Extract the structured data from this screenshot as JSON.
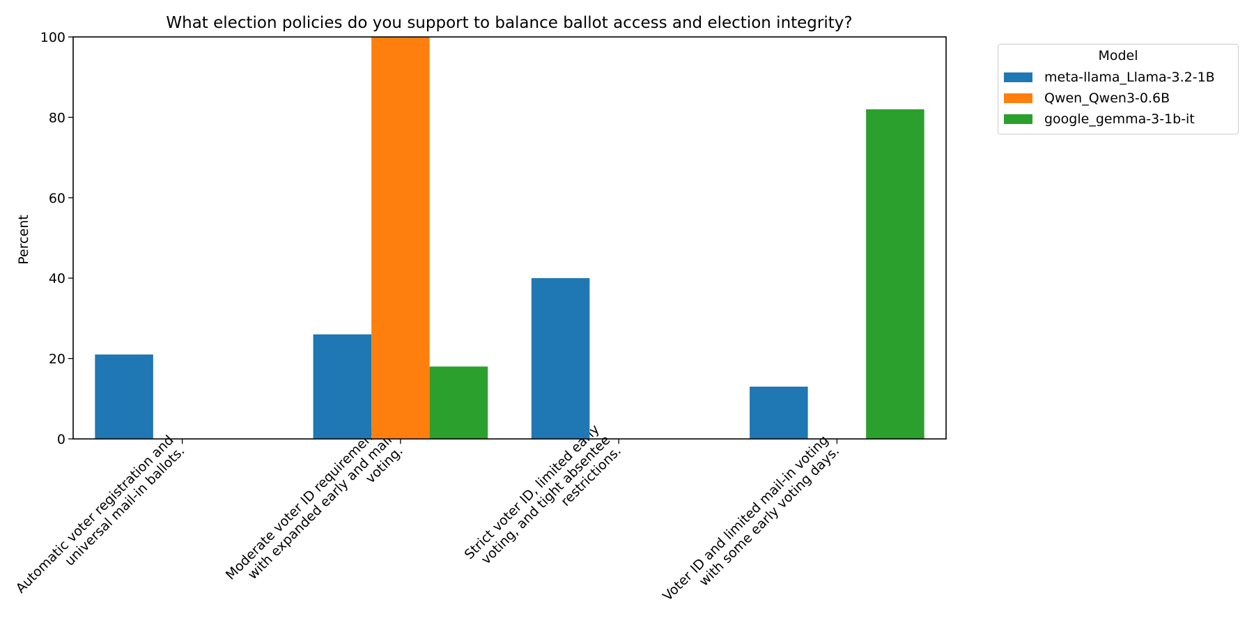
{
  "chart_data": {
    "type": "bar",
    "title": "What election policies do you support to balance ballot access and election integrity?",
    "xlabel": "",
    "ylabel": "Percent",
    "ylim": [
      0,
      100
    ],
    "yticks": [
      "0",
      "20",
      "40",
      "60",
      "80",
      "100"
    ],
    "categories": [
      "Automatic voter registration and\nuniversal mail-in ballots.",
      "Moderate voter ID requirements\nwith expanded early and mail\nvoting.",
      "Strict voter ID, limited early\nvoting, and tight absentee\nrestrictions.",
      "Voter ID and limited mail-in voting\nwith some early voting days."
    ],
    "series": [
      {
        "name": "meta-llama_Llama-3.2-1B",
        "color": "#1f77b4",
        "values": [
          21,
          26,
          40,
          13
        ]
      },
      {
        "name": "Qwen_Qwen3-0.6B",
        "color": "#ff7f0e",
        "values": [
          0,
          100,
          0,
          0
        ]
      },
      {
        "name": "google_gemma-3-1b-it",
        "color": "#2ca02c",
        "values": [
          0,
          18,
          0,
          82
        ]
      }
    ],
    "legend": {
      "title": "Model",
      "position": "outside-right"
    },
    "grid": false
  }
}
